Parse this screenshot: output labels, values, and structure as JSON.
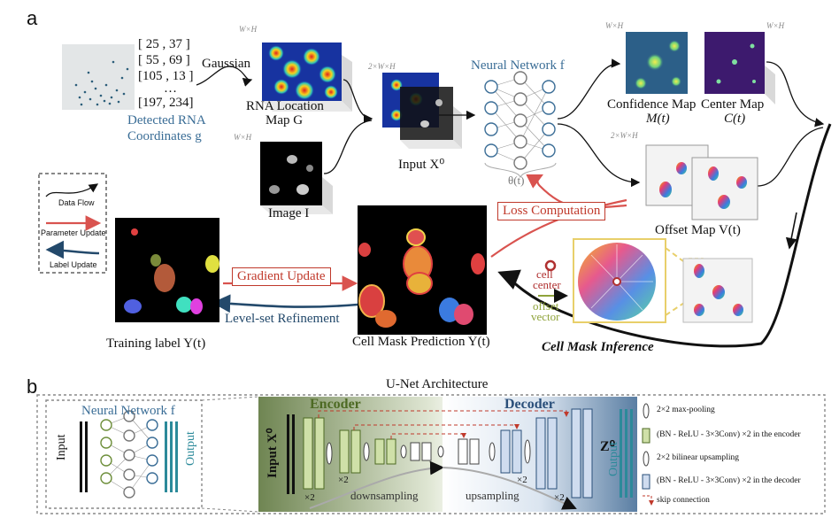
{
  "panel_a": "a",
  "panel_b": "b",
  "coords": [
    "[ 25 ,  37 ]",
    "[ 55 ,  69 ]",
    "[105 ,  13 ]",
    "…",
    "[197, 234]"
  ],
  "detected_label": [
    "Detected RNA",
    "Coordinates g"
  ],
  "gaussian": "Gaussian",
  "dim_wh": "W×H",
  "dim_2wh": "2×W×H",
  "rna_map_label": [
    "RNA Location",
    "Map G"
  ],
  "image_label": "Image I",
  "input_label": "Input X⁰",
  "nn_label": "Neural Network f",
  "theta": "θ(t)",
  "confidence_label": [
    "Confidence Map",
    "M(t)"
  ],
  "center_label": [
    "Center Map",
    "C(t)"
  ],
  "offset_label": "Offset Map V(t)",
  "loss_label": "Loss Computation",
  "gradient_label": "Gradient Update",
  "levelset_label": "Level-set Refinement",
  "training_label": "Training label Y(t)",
  "mask_label": "Cell Mask Prediction Y(t)",
  "inference_label": "Cell Mask Inference",
  "cell_center": [
    "cell",
    "center"
  ],
  "offset_vector": [
    "offset",
    "vector"
  ],
  "legend_a": [
    "Data Flow",
    "Parameter Update",
    "Label Update"
  ],
  "unet_title": "U-Net Architecture",
  "nn_b_label": "Neural Network f",
  "input_b": "Input",
  "output_b": "Output",
  "input_x0": "Input X⁰",
  "encoder": "Encoder",
  "decoder": "Decoder",
  "z0": "Z⁰",
  "output_v": "Output",
  "x2": "×2",
  "downsampling": "downsampling",
  "upsampling": "upsampling",
  "legend_b": [
    "2×2 max-pooling",
    "(BN - ReLU - 3×3Conv) ×2 in the encoder",
    "2×2 bilinear upsampling",
    "(BN - ReLU - 3×3Conv) ×2 in the decoder",
    "skip connection"
  ],
  "colors": {
    "blue": "#3a6d96",
    "red": "#d9534f",
    "navy": "#23496b",
    "green": "#6d8e3a"
  }
}
